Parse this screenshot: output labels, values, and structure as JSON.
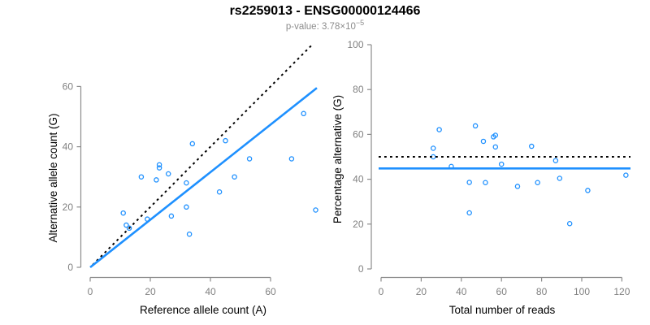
{
  "title": "rs2259013 - ENSG00000124466",
  "subtitle": {
    "text": "p-value: 3.78×10",
    "exponent": "−5",
    "full": "p-value: 3.78×10^−5"
  },
  "colors": {
    "point_blue": "#1E90FF",
    "fit_line_blue": "#1E90FF",
    "dotted_line_black": "#000000",
    "axis_gray": "#8c8c8c",
    "tick_label_gray": "#808080",
    "title_black": "#000000",
    "subtitle_gray": "#8c8c8c",
    "background": "#ffffff"
  },
  "chart_data": [
    {
      "type": "scatter",
      "title": "rs2259013 - ENSG00000124466",
      "xlabel": "Reference allele count (A)",
      "ylabel": "Alternative allele count (G)",
      "xticks": [
        0,
        20,
        40,
        60
      ],
      "yticks": [
        0,
        20,
        40,
        60
      ],
      "xlim": [
        0,
        75.5
      ],
      "ylim": [
        0,
        74
      ],
      "grid": false,
      "legend": "none",
      "points": [
        [
          11,
          18
        ],
        [
          12,
          14
        ],
        [
          13,
          13
        ],
        [
          17,
          30
        ],
        [
          19,
          16
        ],
        [
          22,
          29
        ],
        [
          23,
          33
        ],
        [
          23,
          34
        ],
        [
          26,
          31
        ],
        [
          27,
          17
        ],
        [
          32,
          20
        ],
        [
          32,
          28
        ],
        [
          33,
          11
        ],
        [
          34,
          41
        ],
        [
          43,
          25
        ],
        [
          45,
          42
        ],
        [
          48,
          30
        ],
        [
          53,
          36
        ],
        [
          67,
          36
        ],
        [
          71,
          51
        ],
        [
          75,
          19
        ]
      ],
      "lines": [
        {
          "name": "identity-line-y-equals-x",
          "style": "dotted",
          "color": "#000000",
          "x1": 0.8,
          "y1": 0.8,
          "x2": 74,
          "y2": 74
        },
        {
          "name": "fit-line",
          "style": "solid",
          "color": "#1E90FF",
          "x1": 0,
          "y1": 0,
          "x2": 75.4,
          "y2": 59.5,
          "slope": 0.79
        }
      ]
    },
    {
      "type": "scatter",
      "title": "",
      "xlabel": "Total number of reads",
      "ylabel": "Percentage alternative (G)",
      "xticks": [
        0,
        20,
        40,
        60,
        80,
        100,
        120
      ],
      "yticks": [
        0,
        20,
        40,
        60,
        80,
        100
      ],
      "xlim": [
        0,
        124
      ],
      "ylim": [
        0,
        100
      ],
      "grid": false,
      "legend": "none",
      "points": [
        [
          29,
          62.1
        ],
        [
          26,
          53.8
        ],
        [
          26,
          50.0
        ],
        [
          47,
          63.8
        ],
        [
          35,
          45.7
        ],
        [
          51,
          56.9
        ],
        [
          56,
          58.9
        ],
        [
          57,
          59.6
        ],
        [
          57,
          54.4
        ],
        [
          44,
          38.6
        ],
        [
          52,
          38.5
        ],
        [
          60,
          46.7
        ],
        [
          44,
          25.0
        ],
        [
          75,
          54.7
        ],
        [
          68,
          36.8
        ],
        [
          87,
          48.3
        ],
        [
          78,
          38.5
        ],
        [
          89,
          40.4
        ],
        [
          103,
          35.0
        ],
        [
          122,
          41.8
        ],
        [
          94,
          20.2
        ]
      ],
      "hlines": [
        {
          "name": "null-expectation-50pct",
          "style": "dotted",
          "color": "#000000",
          "y": 50
        },
        {
          "name": "mean-percentage",
          "style": "solid",
          "color": "#1E90FF",
          "y": 44.8
        }
      ]
    }
  ]
}
